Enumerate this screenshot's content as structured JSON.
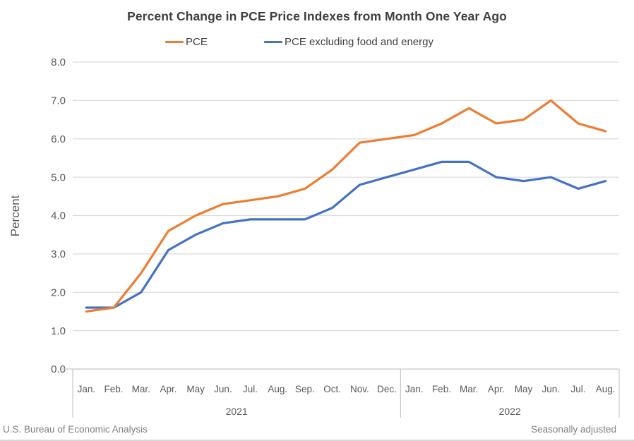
{
  "title": "Percent Change in PCE Price Indexes from Month One Year Ago",
  "footer": {
    "left": "U.S. Bureau of Economic Analysis",
    "right": "Seasonally adjusted"
  },
  "colors": {
    "pce": "#ED7D31",
    "core": "#4472C4",
    "grid": "#DCDCDC",
    "axis": "#C8C8C8",
    "tick_text": "#595959",
    "title_text": "#3F3F3F",
    "footer_text": "#808080"
  },
  "chart_data": {
    "type": "line",
    "title": "Percent Change in PCE Price Indexes from Month One Year Ago",
    "xlabel": "",
    "ylabel": "Percent",
    "ylim": [
      0,
      8
    ],
    "y_tick_labels": [
      "0.0",
      "1.0",
      "2.0",
      "3.0",
      "4.0",
      "5.0",
      "6.0",
      "7.0",
      "8.0"
    ],
    "grid": true,
    "legend_position": "top-center",
    "x_groups": [
      {
        "year": "2021",
        "months": [
          "Jan.",
          "Feb.",
          "Mar.",
          "Apr.",
          "May",
          "Jun.",
          "Jul.",
          "Aug.",
          "Sep.",
          "Oct.",
          "Nov.",
          "Dec."
        ]
      },
      {
        "year": "2022",
        "months": [
          "Jan.",
          "Feb.",
          "Mar.",
          "Apr.",
          "May",
          "Jun.",
          "Jul.",
          "Aug."
        ]
      }
    ],
    "series": [
      {
        "name": "PCE",
        "color": "#ED7D31",
        "values": [
          1.5,
          1.6,
          2.5,
          3.6,
          4.0,
          4.3,
          4.4,
          4.5,
          4.7,
          5.2,
          5.9,
          6.0,
          6.1,
          6.4,
          6.8,
          6.4,
          6.5,
          7.0,
          6.4,
          6.2
        ]
      },
      {
        "name": "PCE excluding food and energy",
        "color": "#4472C4",
        "values": [
          1.6,
          1.6,
          2.0,
          3.1,
          3.5,
          3.8,
          3.9,
          3.9,
          3.9,
          4.2,
          4.8,
          5.0,
          5.2,
          5.4,
          5.4,
          5.0,
          4.9,
          5.0,
          4.7,
          4.9
        ]
      }
    ]
  }
}
